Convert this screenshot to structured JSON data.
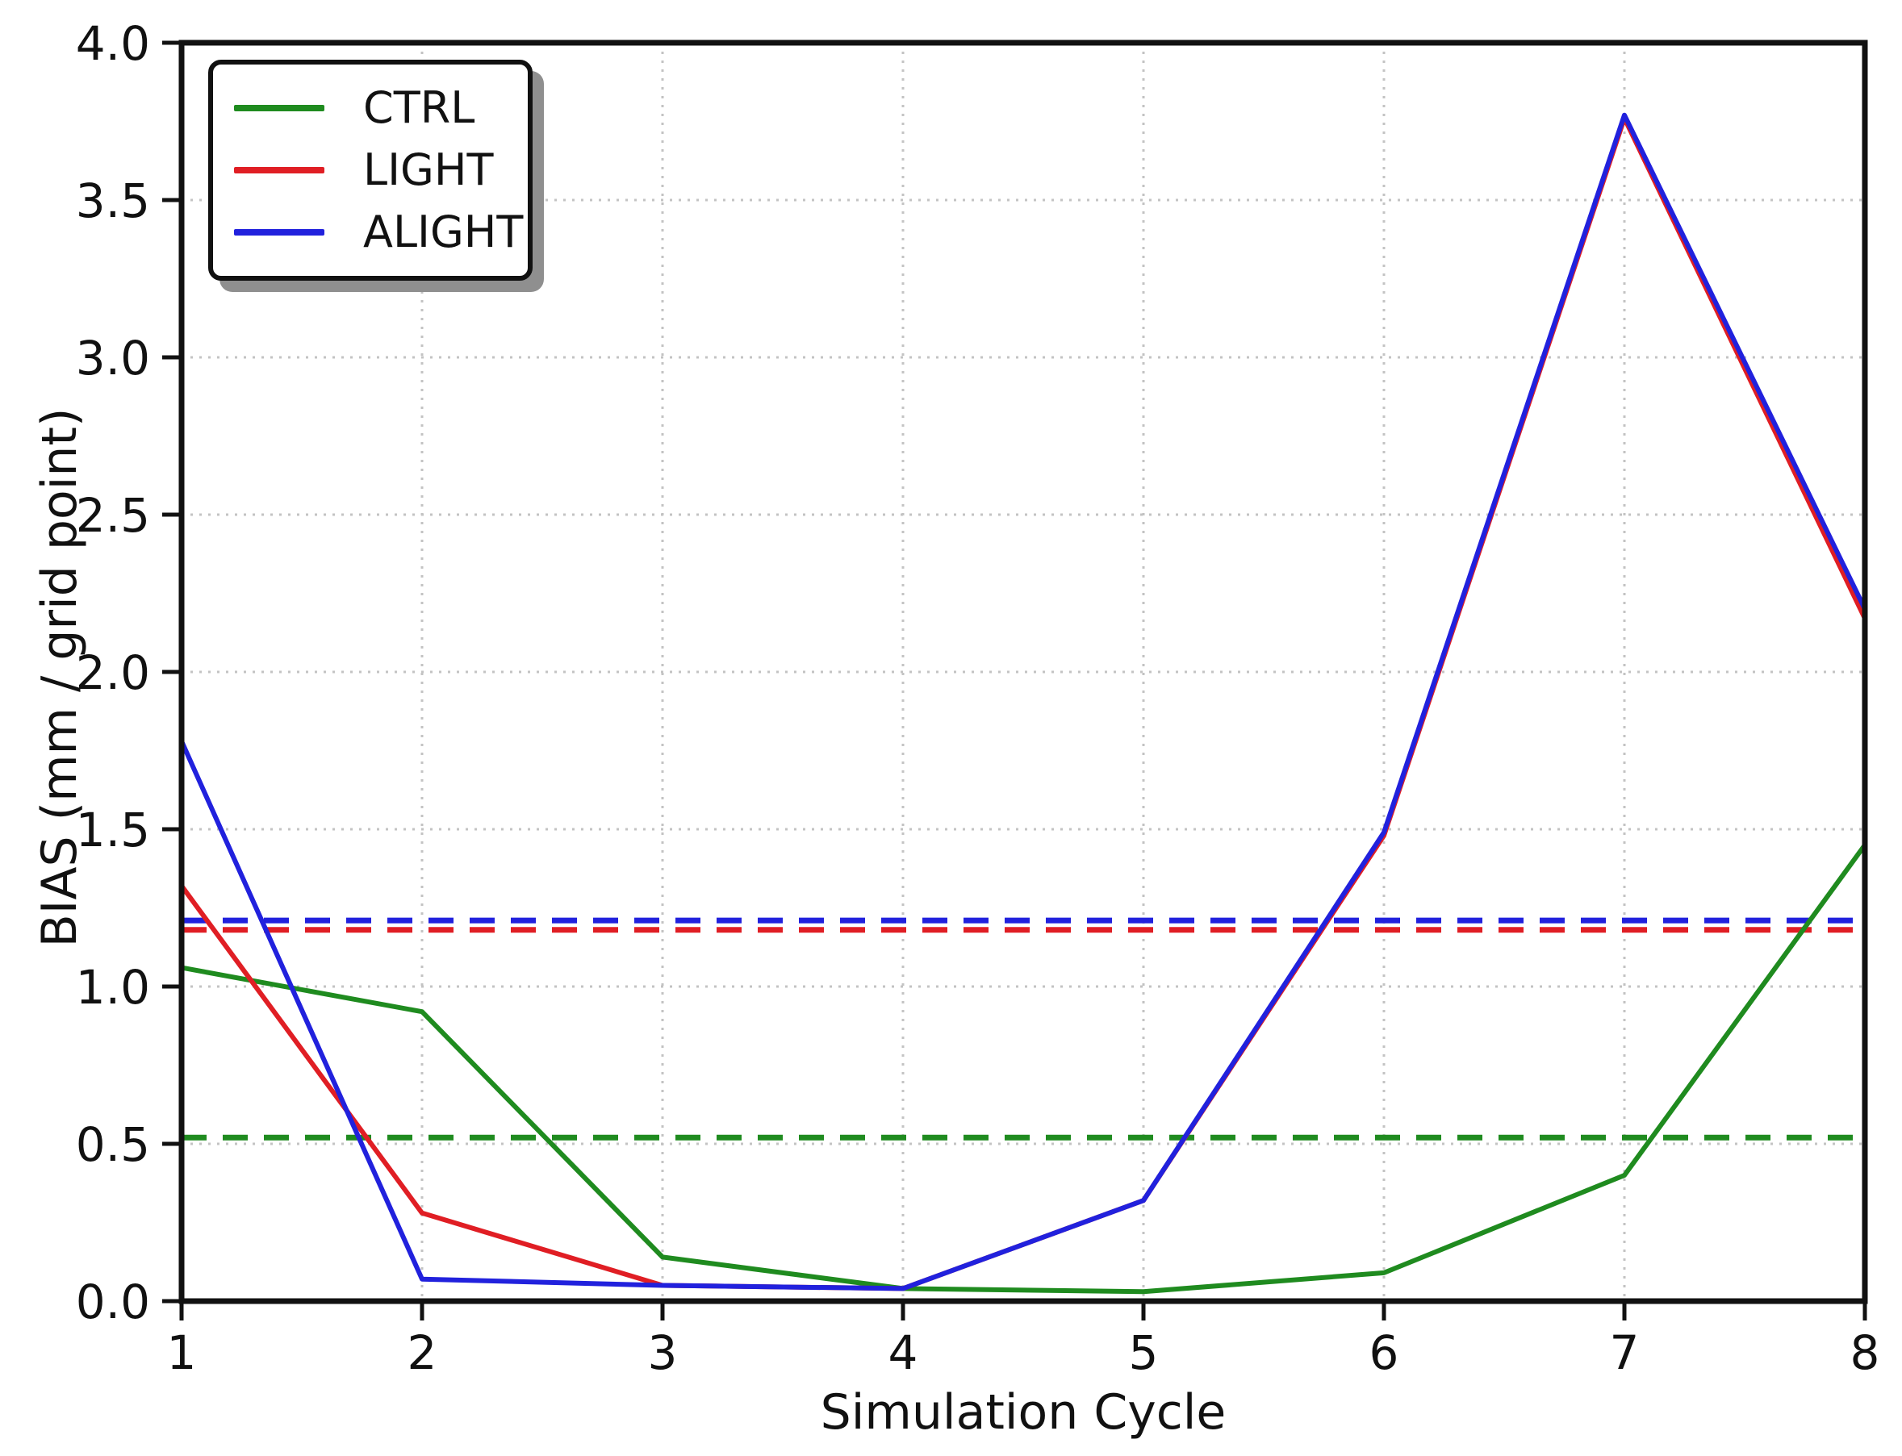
{
  "figure": {
    "background": "#ffffff"
  },
  "axes": {
    "xlabel": "Simulation Cycle",
    "ylabel": "BIAS (mm / grid point)",
    "x_ticks": [
      {
        "value": 1,
        "label": "1"
      },
      {
        "value": 2,
        "label": "2"
      },
      {
        "value": 3,
        "label": "3"
      },
      {
        "value": 4,
        "label": "4"
      },
      {
        "value": 5,
        "label": "5"
      },
      {
        "value": 6,
        "label": "6"
      },
      {
        "value": 7,
        "label": "7"
      },
      {
        "value": 8,
        "label": "8"
      }
    ],
    "y_ticks": [
      {
        "value": 0.0,
        "label": "0.0"
      },
      {
        "value": 0.5,
        "label": "0.5"
      },
      {
        "value": 1.0,
        "label": "1.0"
      },
      {
        "value": 1.5,
        "label": "1.5"
      },
      {
        "value": 2.0,
        "label": "2.0"
      },
      {
        "value": 2.5,
        "label": "2.5"
      },
      {
        "value": 3.0,
        "label": "3.0"
      },
      {
        "value": 3.5,
        "label": "3.5"
      },
      {
        "value": 4.0,
        "label": "4.0"
      }
    ],
    "spine_color": "#111111",
    "grid_color": "#c3c3c3"
  },
  "legend": {
    "position": "upper left",
    "items": [
      {
        "label": "CTRL",
        "color": "#1f8b1f"
      },
      {
        "label": "LIGHT",
        "color": "#e01e24"
      },
      {
        "label": "ALIGHT",
        "color": "#2121dd"
      }
    ]
  },
  "chart_data": {
    "type": "line",
    "title": "",
    "xlabel": "Simulation Cycle",
    "ylabel": "BIAS (mm / grid point)",
    "x": [
      1,
      2,
      3,
      4,
      5,
      6,
      7,
      8
    ],
    "xlim": [
      1,
      8
    ],
    "ylim": [
      0,
      4
    ],
    "grid": true,
    "grid_style": "dotted",
    "legend_position": "upper left",
    "series": [
      {
        "name": "CTRL",
        "color": "#1f8b1f",
        "style": "solid",
        "values": [
          1.06,
          0.92,
          0.14,
          0.04,
          0.03,
          0.09,
          0.4,
          1.45
        ]
      },
      {
        "name": "LIGHT",
        "color": "#e01e24",
        "style": "solid",
        "values": [
          1.32,
          0.28,
          0.05,
          0.04,
          0.32,
          1.48,
          3.76,
          2.17
        ]
      },
      {
        "name": "ALIGHT",
        "color": "#2121dd",
        "style": "solid",
        "values": [
          1.78,
          0.07,
          0.05,
          0.04,
          0.32,
          1.49,
          3.77,
          2.2
        ]
      }
    ],
    "mean_lines": [
      {
        "series": "CTRL",
        "value": 0.52,
        "color": "#1f8b1f",
        "style": "dashed"
      },
      {
        "series": "LIGHT",
        "value": 1.18,
        "color": "#e01e24",
        "style": "dashed"
      },
      {
        "series": "ALIGHT",
        "value": 1.21,
        "color": "#2121dd",
        "style": "dashed"
      }
    ]
  }
}
